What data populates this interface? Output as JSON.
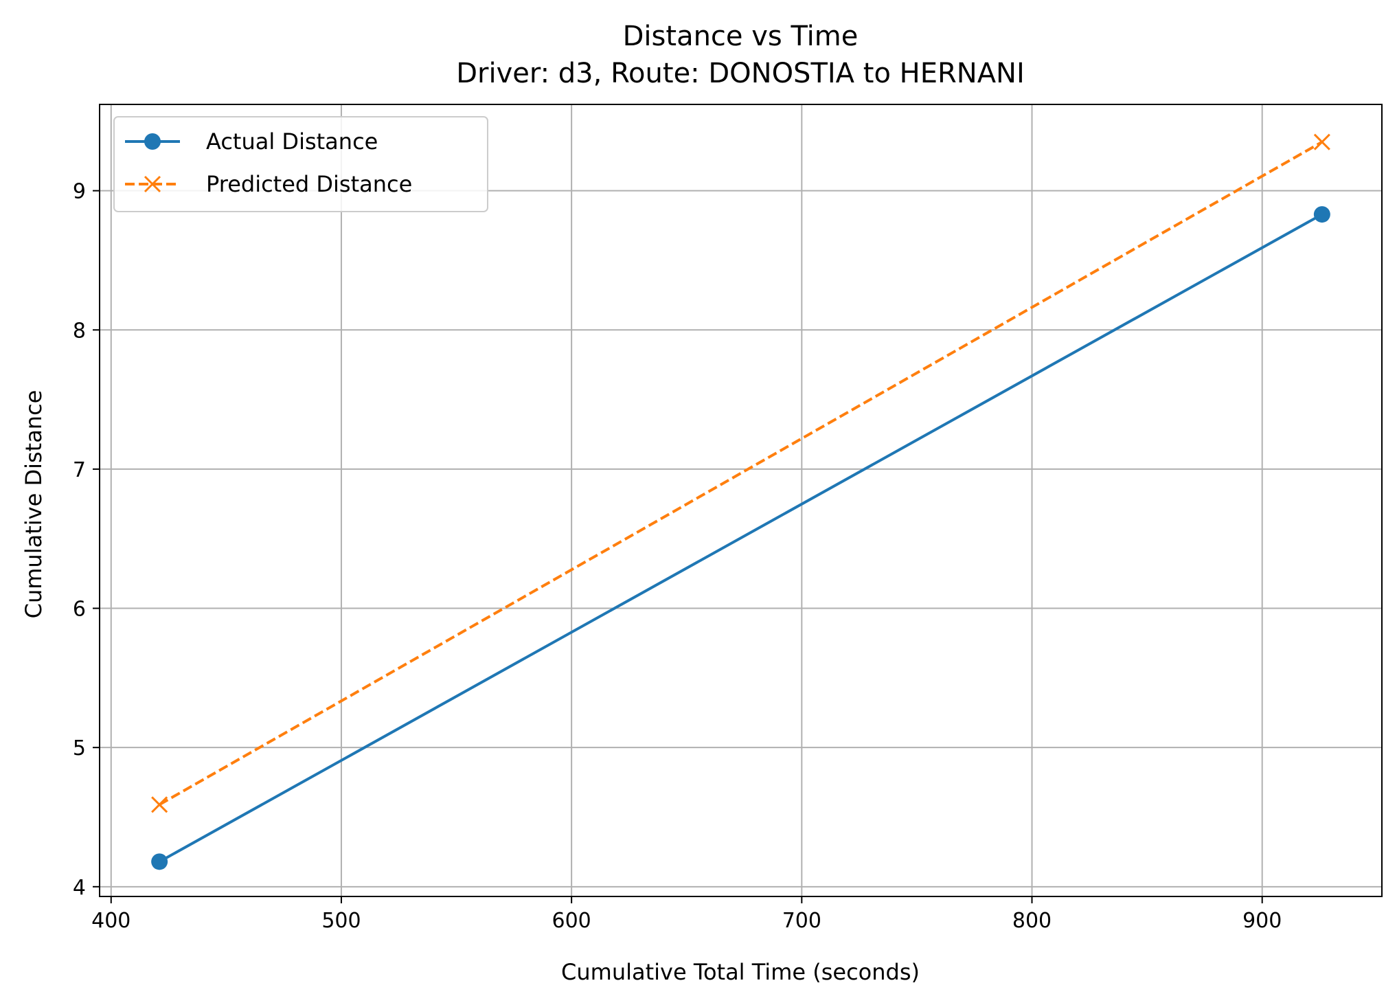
{
  "chart_data": {
    "type": "line",
    "title": "Distance vs Time",
    "subtitle": "Driver: d3, Route: DONOSTIA to HERNANI",
    "xlabel": "Cumulative Total Time (seconds)",
    "ylabel": "Cumulative Distance",
    "xlim": [
      395,
      952
    ],
    "ylim": [
      3.93,
      9.62
    ],
    "xticks": [
      400,
      500,
      600,
      700,
      800,
      900
    ],
    "yticks": [
      4,
      5,
      6,
      7,
      8,
      9
    ],
    "grid": true,
    "legend_position": "top-left",
    "series": [
      {
        "name": "Actual Distance",
        "color": "#1f77b4",
        "line_style": "solid",
        "marker": "circle",
        "x": [
          421,
          926
        ],
        "y": [
          4.18,
          8.83
        ]
      },
      {
        "name": "Predicted Distance",
        "color": "#ff7f0e",
        "line_style": "dashed",
        "marker": "x",
        "x": [
          421,
          926
        ],
        "y": [
          4.59,
          9.35
        ]
      }
    ]
  }
}
